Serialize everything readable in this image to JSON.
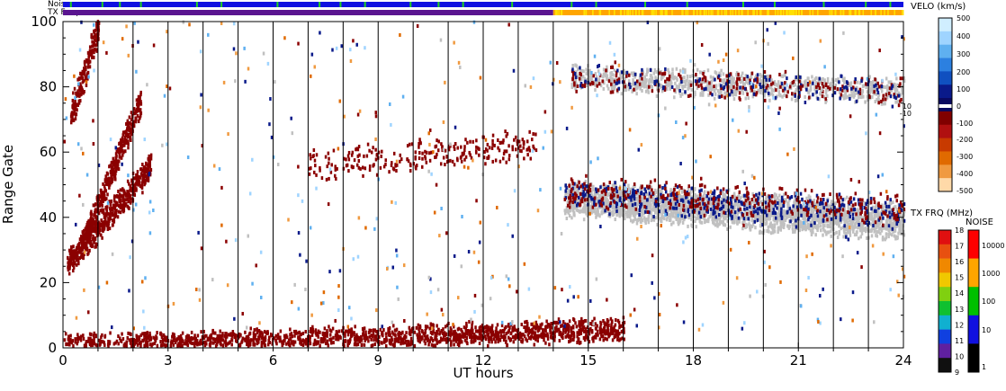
{
  "chart_data": {
    "type": "heatmap",
    "title": "",
    "xlabel": "UT hours",
    "ylabel": "Range Gate",
    "xlim": [
      0,
      24
    ],
    "ylim": [
      0,
      100
    ],
    "x_ticks": [
      0,
      3,
      6,
      9,
      12,
      15,
      18,
      21,
      24
    ],
    "y_ticks": [
      0,
      20,
      40,
      60,
      80,
      100
    ],
    "vertical_lines_hours": [
      1,
      2,
      3,
      4,
      5,
      6,
      7,
      8,
      9,
      10,
      11,
      12,
      13,
      14,
      15,
      16,
      17,
      18,
      19,
      20,
      21,
      22,
      23
    ],
    "top_strips": [
      {
        "label": "Noise",
        "segments": [
          {
            "from": 0,
            "to": 24,
            "color": "#1010e0"
          }
        ],
        "green_ticks_hours": [
          0.2,
          1.1,
          1.6,
          2.2,
          3.8,
          4.5,
          6.1,
          7.3,
          7.9,
          8.6,
          9.9,
          10.7,
          11.4,
          12.8,
          14.5,
          15.2,
          16.6,
          17.8,
          19.4,
          20.3,
          21.7,
          22.9,
          23.6
        ]
      },
      {
        "label": "TX Freq",
        "segments": [
          {
            "from": 0,
            "to": 14.0,
            "color": "#5a1590"
          },
          {
            "from": 14.0,
            "to": 24,
            "color": "#ffa500"
          }
        ]
      }
    ],
    "scatter_regions": [
      {
        "name": "pre-dawn slant lower",
        "x_start": 0.1,
        "x_end": 2.5,
        "y_start": 25,
        "y_end": 55,
        "width": 6,
        "color": "#8b0000",
        "count": 520
      },
      {
        "name": "pre-dawn slant upper",
        "x_start": 0.5,
        "x_end": 2.2,
        "y_start": 30,
        "y_end": 75,
        "width": 6,
        "color": "#8b0000",
        "count": 380
      },
      {
        "name": "early high",
        "x_start": 0.2,
        "x_end": 1.0,
        "y_start": 70,
        "y_end": 98,
        "width": 8,
        "color": "#8b0000",
        "count": 180
      },
      {
        "name": "ground scatter near 0",
        "x_start": 0,
        "x_end": 16,
        "y_start": 0,
        "y_end": 5,
        "width": 5,
        "color": "#8b0000",
        "count": 1800
      },
      {
        "name": "mid band 60",
        "x_start": 7.0,
        "x_end": 13.5,
        "y_start": 55,
        "y_end": 62,
        "width": 7,
        "color": "#8b0000",
        "count": 260
      },
      {
        "name": "afternoon grey band",
        "x_start": 14.3,
        "x_end": 24.0,
        "y_start": 45,
        "y_end": 38,
        "width": 8,
        "color": "#c0c0c0",
        "count": 2600
      },
      {
        "name": "afternoon blue band",
        "x_start": 14.3,
        "x_end": 24.0,
        "y_start": 46,
        "y_end": 40,
        "width": 7,
        "color": "#0a1a8a",
        "count": 420
      },
      {
        "name": "afternoon red band",
        "x_start": 14.3,
        "x_end": 24.0,
        "y_start": 47,
        "y_end": 42,
        "width": 7,
        "color": "#8b0000",
        "count": 320
      },
      {
        "name": "high grey band",
        "x_start": 14.5,
        "x_end": 24.0,
        "y_start": 82,
        "y_end": 78,
        "width": 6,
        "color": "#c0c0c0",
        "count": 900
      },
      {
        "name": "high red band",
        "x_start": 14.5,
        "x_end": 24.0,
        "y_start": 82,
        "y_end": 78,
        "width": 6,
        "color": "#8b0000",
        "count": 200
      },
      {
        "name": "high blue band",
        "x_start": 14.5,
        "x_end": 24.0,
        "y_start": 82,
        "y_end": 78,
        "width": 6,
        "color": "#0a1a8a",
        "count": 120
      },
      {
        "name": "scattered background",
        "x_start": 0,
        "x_end": 24,
        "y_start": 5,
        "y_end": 100,
        "width": 95,
        "color": "mixed",
        "count": 500
      }
    ],
    "velocity_colorbar": {
      "title": "VELO (km/s)",
      "labels": [
        "500",
        "400",
        "300",
        "200",
        "100",
        "0",
        "-100",
        "-200",
        "-300",
        "-400",
        "-500"
      ],
      "center_labels": [
        "10",
        "-10"
      ],
      "colors": [
        "#d0eeff",
        "#9fd4ff",
        "#5fb0f0",
        "#2c80e0",
        "#1050c0",
        "#0a1a8a",
        "#0a0a60",
        "#800000",
        "#b01010",
        "#c83a00",
        "#e06a00",
        "#f09a40",
        "#ffd9a8"
      ]
    },
    "txfreq_colorbar": {
      "title": "TX FRQ (MHz)",
      "labels": [
        "18",
        "17",
        "16",
        "15",
        "14",
        "13",
        "12",
        "11",
        "10",
        "9"
      ],
      "colors": [
        "#e01010",
        "#e85010",
        "#f08800",
        "#f0c800",
        "#80d010",
        "#10c030",
        "#10b0d0",
        "#1040e0",
        "#6020a0",
        "#101010"
      ]
    },
    "noise_colorbar": {
      "title": "NOISE",
      "labels": [
        "10000",
        "1000",
        "100",
        "10",
        "1"
      ],
      "colors": [
        "#ff0000",
        "#ffa500",
        "#00c000",
        "#1010e0",
        "#000000"
      ]
    }
  }
}
